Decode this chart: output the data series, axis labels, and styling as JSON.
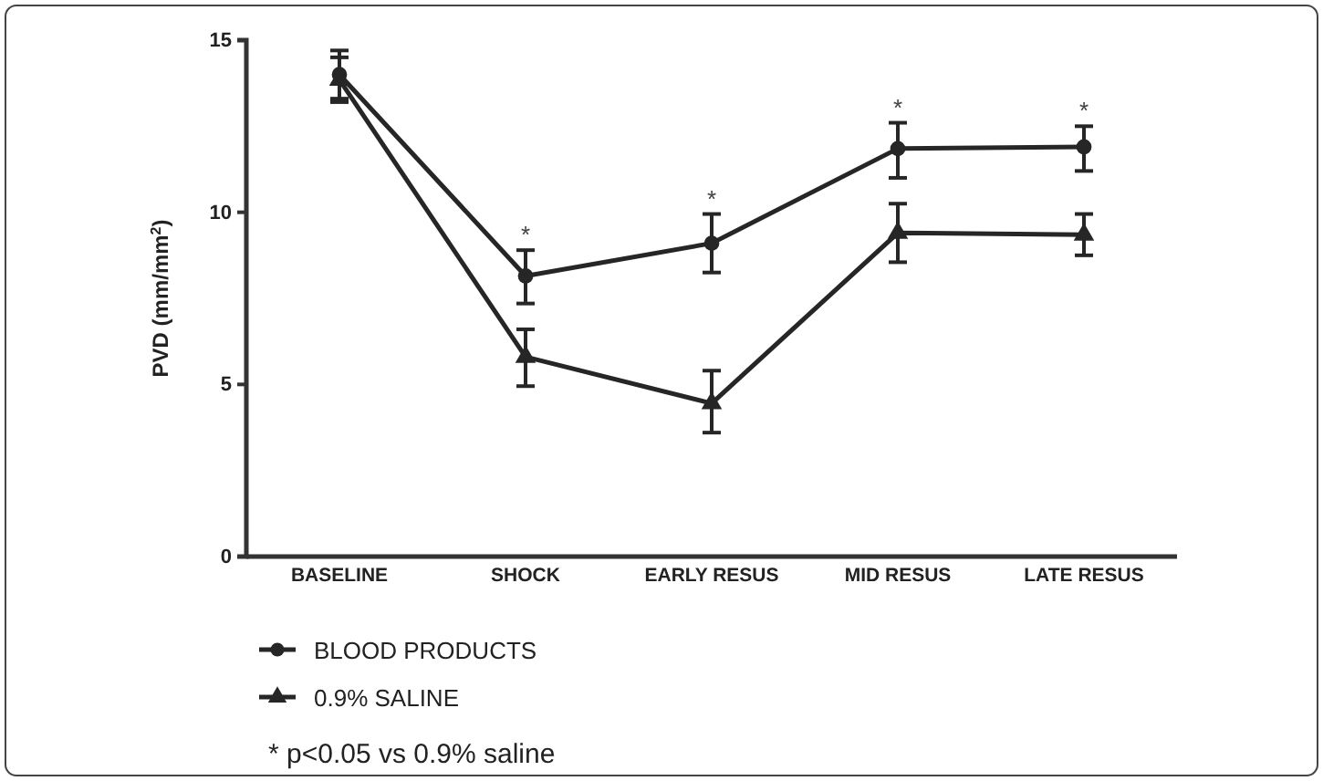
{
  "chart_data": {
    "type": "line",
    "ylabel": "PVD (mm/mm$^{2}$)",
    "categories": [
      "BASELINE",
      "SHOCK",
      "EARLY RESUS",
      "MID RESUS",
      "LATE RESUS"
    ],
    "ylim": [
      0,
      15
    ],
    "yticks": [
      0,
      5,
      10,
      15
    ],
    "legend": "bottom left",
    "line_style": "solid",
    "series": [
      {
        "name": "BLOOD PRODUCTS",
        "color": "#262626",
        "marker": "circle",
        "values": [
          14.0,
          8.15,
          9.1,
          11.85,
          11.9
        ],
        "errors": [
          [
            13.3,
            14.7
          ],
          [
            7.35,
            8.9
          ],
          [
            8.25,
            9.95
          ],
          [
            11.0,
            12.6
          ],
          [
            11.2,
            12.5
          ]
        ]
      },
      {
        "name": "0.9% SALINE",
        "color": "#262626",
        "marker": "triangle",
        "values": [
          13.85,
          5.8,
          4.45,
          9.4,
          9.35
        ],
        "errors": [
          [
            13.2,
            14.5
          ],
          [
            4.95,
            6.6
          ],
          [
            3.6,
            5.4
          ],
          [
            8.55,
            10.25
          ],
          [
            8.75,
            9.95
          ]
        ]
      }
    ],
    "annotations": [
      {
        "text": "*",
        "x": "SHOCK",
        "y": 8.15
      },
      {
        "text": "*",
        "x": "EARLY RESUS",
        "y": 9.1
      },
      {
        "text": "*",
        "x": "MID RESUS",
        "y": 11.85
      },
      {
        "text": "*",
        "x": "LATE RESUS",
        "y": 11.9
      },
      "* p<0.05 vs 0.9% saline"
    ]
  }
}
